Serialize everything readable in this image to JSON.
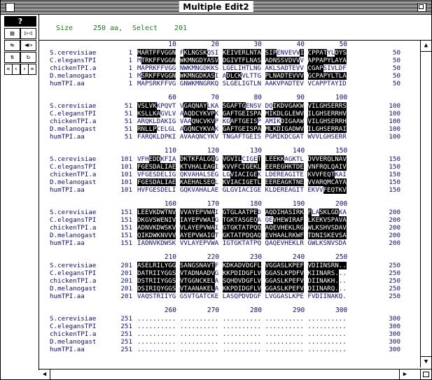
{
  "window": {
    "title": "Multiple Edit2"
  },
  "toolbar": {
    "help_label": "?",
    "buttons": [
      "layout-icon",
      "merge-icon",
      "slide-icon",
      "arrow-left-icon",
      "flip-icon",
      "refresh-icon",
      "first-icon",
      "prev-icon",
      "next-icon",
      "last-icon"
    ]
  },
  "status": {
    "size_label": "Size",
    "size_value": "250 aa,",
    "select_label": "Select",
    "select_value": "201"
  },
  "names": [
    "S.cerevisiae",
    "C.elegansTPI",
    "chickenTPI.a",
    "D.melanogast",
    "humTPI.aa"
  ],
  "blocks": [
    {
      "ticks": [
        "10",
        "20",
        "30",
        "40",
        "50"
      ],
      "start": "1",
      "end": "50",
      "seqs": [
        "MARTFFVGGN FKLNGSKQSI KEIVERLNTA SIPENVEVVI CPPATYLDYS",
        "MTRKFFVGGN WKMNGDYASV DGIVTFLNAS ADNSSVDVVV APPAPYLAYA",
        "MAPRKFFVGG NWKMNGDKKS LGELIHTLNG AKLSADTEVV CGAPSIVLDF",
        "MSRKFFVGGN WKMNGDKASI ADLCKVLTTG PLNADTEVVV GCPAPYLTLA",
        "MAPSRKFFVG GNWKMNGRKQ SLGELIGTLN AAKVPADTEV VCAPPTAYID"
      ],
      "hl": [
        [
          1,
          2,
          3,
          4,
          5,
          6,
          7,
          8,
          9,
          10,
          13,
          14,
          15,
          16,
          17,
          18,
          23,
          24,
          25,
          26,
          27,
          28,
          29,
          30,
          31,
          32,
          33,
          34,
          35,
          36,
          43,
          44,
          45,
          46,
          47,
          48,
          49,
          52,
          53,
          54,
          55,
          56,
          57,
          58,
          59
        ],
        [
          2,
          3,
          4,
          5,
          6,
          7,
          8,
          9,
          10,
          12,
          13,
          14,
          15,
          16,
          17,
          18,
          19,
          20,
          21,
          23,
          24,
          25,
          26,
          27,
          28,
          29,
          30,
          31,
          32,
          33,
          34,
          35,
          36,
          37,
          38,
          39,
          40,
          41,
          42,
          44,
          45,
          46,
          47,
          48,
          49,
          50,
          51,
          52,
          53,
          54,
          55,
          56,
          57,
          58,
          59
        ],
        [
          44,
          45,
          46,
          47,
          48
        ],
        [
          2,
          3,
          4,
          5,
          6,
          7,
          8,
          9,
          10,
          12,
          13,
          14,
          15,
          16,
          17,
          18,
          19,
          20,
          24,
          25,
          26,
          27,
          34,
          35,
          36,
          37,
          38,
          39,
          40,
          41,
          42,
          43,
          44,
          45,
          46,
          47,
          48,
          49,
          50,
          51,
          52,
          53,
          54,
          55,
          56,
          57
        ],
        []
      ]
    },
    {
      "ticks": [
        "60",
        "70",
        "80",
        "90",
        "100"
      ],
      "start": "51",
      "end": "100",
      "seqs": [
        "VSLVKKPQVT VGAQNAYLKA SGAFTGENSV DQIKDVGAKW VILGHSERRS",
        "KSLLKAGVLV AAQDCYKVPK GAFTGEISPA MIKDLGLEWV ILGHSERRHV",
        "ARQKLDAKIG VAAQNCVKVP KGAFTGEISP AMIKDIGAAW VILGHSERRH",
        "RNLLPCELGL AGQNCYKVAK GAFTGEISPA MLKDIGADWV ILGHSERRAI",
        "FARQKLDPKI AVAAQNCYKV TNGAFTGEIS PGMIKDCGAT WVVLGHSERR"
      ],
      "hl": [
        [
          1,
          2,
          3,
          4,
          5,
          13,
          14,
          15,
          16,
          17,
          18,
          22,
          23,
          24,
          25,
          26,
          27,
          28,
          36,
          37,
          38,
          39,
          40,
          41,
          42,
          43,
          44,
          45,
          46,
          47,
          48,
          49,
          50,
          51,
          52,
          53,
          54,
          55,
          56,
          57
        ],
        [
          1,
          2,
          3,
          4,
          5,
          6,
          13,
          14,
          15,
          16,
          17,
          18,
          19,
          20,
          22,
          23,
          24,
          25,
          26,
          27,
          28,
          29,
          30,
          31,
          32,
          33,
          34,
          35,
          36,
          37,
          38,
          39,
          40,
          41,
          42,
          43,
          44,
          45,
          46,
          47,
          48,
          49,
          50,
          51,
          52,
          53,
          54,
          55,
          56,
          57,
          58,
          59
        ],
        [
          15,
          16,
          17,
          18,
          19,
          20,
          25,
          26,
          27,
          28,
          29,
          30,
          31,
          38,
          39,
          40,
          41,
          42,
          43,
          44,
          45,
          46,
          47,
          48,
          49,
          50,
          51,
          52,
          53,
          54,
          55,
          56,
          57,
          58,
          59
        ],
        [
          1,
          2,
          3,
          4,
          5,
          13,
          14,
          15,
          16,
          17,
          18,
          19,
          20,
          22,
          23,
          24,
          25,
          26,
          27,
          28,
          29,
          30,
          31,
          32,
          33,
          34,
          35,
          36,
          37,
          38,
          39,
          40,
          41,
          42,
          43,
          44,
          45,
          46,
          47,
          48,
          49,
          50,
          51,
          52,
          53,
          54,
          55,
          56,
          57,
          58,
          59
        ],
        []
      ]
    },
    {
      "ticks": [
        "110",
        "120",
        "130",
        "140",
        "150"
      ],
      "start": "101",
      "end": "150",
      "seqs": [
        "VFHEDDKFIA DKTKFALGQG VGVILCIGET LEEKKAGKTL DVVERQLNAV",
        "FGESDALIAE KTVHALEAGI KVVFCIGEKL EEREGHKTDE VNFRQLQAIV",
        "VFGESDELIG QKVAHALSEG LGVIACIGEK LDEREAGITE KVVFEQTKAI",
        "FGESDALIAE KAEHALSEGL KVIACIGETL EEREAGKTNE VVARQMCAYA",
        "HVFGESDELI GQKVAHALAE GLGVIACIGE KLDEREAGIT EKVVFEQTKV"
      ],
      "hl": [
        [
          4,
          5,
          6,
          12,
          13,
          14,
          15,
          16,
          17,
          18,
          19,
          20,
          22,
          23,
          24,
          25,
          26,
          27,
          32,
          33,
          34,
          35,
          36,
          37,
          38,
          44,
          45,
          46,
          47,
          48,
          49,
          50,
          51,
          52,
          53,
          54,
          55,
          56,
          57,
          58,
          59
        ],
        [
          1,
          2,
          3,
          4,
          5,
          6,
          7,
          8,
          9,
          10,
          12,
          13,
          14,
          15,
          16,
          17,
          18,
          19,
          20,
          22,
          23,
          24,
          25,
          26,
          27,
          28,
          29,
          30,
          31,
          32,
          33,
          34,
          35,
          36,
          37,
          38,
          39,
          40,
          41,
          42,
          43,
          44,
          45,
          46,
          47,
          48,
          49,
          50,
          51,
          52,
          53,
          54,
          55,
          56,
          57,
          58,
          59
        ],
        [
          25,
          26,
          27,
          28,
          29,
          30,
          31,
          44,
          45,
          46,
          47,
          48,
          49,
          50,
          51
        ],
        [
          1,
          2,
          3,
          4,
          5,
          6,
          7,
          8,
          9,
          10,
          12,
          13,
          14,
          15,
          16,
          17,
          18,
          19,
          20,
          22,
          23,
          24,
          25,
          26,
          27,
          28,
          29,
          30,
          31,
          32,
          33,
          34,
          35,
          36,
          37,
          38,
          39,
          40,
          41,
          42,
          43,
          44,
          45,
          46,
          47,
          48,
          49,
          50,
          51,
          52,
          53,
          54,
          55,
          56,
          57,
          58,
          59
        ],
        [
          49,
          50,
          51,
          52,
          53,
          54,
          55,
          56,
          57,
          58,
          59
        ]
      ]
    },
    {
      "ticks": [
        "160",
        "170",
        "180",
        "190",
        "200"
      ],
      "start": "151",
      "end": "200",
      "seqs": [
        "LEEVKDWTNV VVAYEPVWAI GTGLAATPED AQDIHASIRK FLASKLGDKA",
        "DKGVSWENIV IAYEPVWAIG TGKTASGEQA QEVHEWIRAF LKEKVSPAVA",
        "ADNVKDWSKV VLAYEPVWAI GTGKTATPQQ AQEVHEKLRG WLKSHVSDAV",
        "QIKDWKNVVV AYEPVWAIGT GKTATPDQAQ EVHAALRKWF TDNISKEVSA",
        "IADNVKDWSK VVLAYEPVWA IGTGKTATPQ QAQEVHEKLR GWLKSNVSDA"
      ],
      "hl": [
        [
          1,
          2,
          3,
          4,
          5,
          6,
          7,
          8,
          9,
          10,
          12,
          13,
          14,
          15,
          16,
          17,
          18,
          19,
          20,
          22,
          23,
          24,
          25,
          26,
          27,
          28,
          29,
          30,
          31,
          34,
          35,
          36,
          37,
          38,
          39,
          40,
          41,
          42,
          43,
          44,
          45,
          48,
          49,
          50,
          51,
          52
        ],
        [
          1,
          2,
          3,
          4,
          5,
          6,
          7,
          8,
          9,
          10,
          12,
          13,
          14,
          15,
          16,
          17,
          18,
          19,
          20,
          22,
          23,
          24,
          25,
          26,
          27,
          28,
          29,
          30,
          31,
          36,
          37,
          38,
          39,
          40,
          41,
          42,
          43,
          44,
          45,
          46,
          47,
          48,
          49,
          50,
          51,
          52,
          53,
          54,
          55,
          56,
          57,
          58,
          59
        ],
        [
          1,
          2,
          3,
          4,
          5,
          6,
          7,
          8,
          9,
          10,
          12,
          13,
          14,
          15,
          16,
          17,
          18,
          19,
          20,
          22,
          23,
          24,
          25,
          26,
          27,
          28,
          29,
          30,
          31,
          32,
          33,
          34,
          35,
          36,
          37,
          38,
          39,
          40,
          41,
          42,
          43,
          44,
          45,
          46,
          47,
          48,
          49,
          50,
          51,
          52,
          53,
          54,
          55,
          56,
          57,
          58,
          59
        ],
        [
          1,
          2,
          3,
          4,
          5,
          6,
          7,
          8,
          9,
          10,
          12,
          13,
          14,
          15,
          16,
          17,
          18,
          19,
          20,
          22,
          23,
          24,
          25,
          26,
          27,
          28,
          29,
          30,
          31,
          32,
          33,
          34,
          35,
          36,
          37,
          38,
          39,
          40,
          41,
          42,
          43,
          44,
          45,
          46,
          47,
          48,
          49,
          50,
          51,
          52,
          53,
          54,
          55,
          56,
          57,
          58,
          59
        ],
        []
      ]
    },
    {
      "ticks": [
        "210",
        "220",
        "230",
        "240",
        "250"
      ],
      "start": "201",
      "end": "250",
      "seqs": [
        "ASELRILYGG SANGSNAVTF KDKADVDGFL VGGASLKPEF VDIINSRN..",
        "DATRIIYGGS VTADNAADVG KKPDIDGFLV GGASLKPDFV KIINARS...",
        "DSTRIIYGGS VTGGNCKELA SQHDVDGFLV GGASLKPEFV DIINAKH...",
        "DSIRIQYGGS VTAANAKELA KKPDIDGFLV GGASLKPEFV DIINARQ...",
        "VAQSTRIIYG GSVTGATCKE LASQPDVDGF LVGGASLKPE FVDIINAKQ."
      ],
      "hl": [
        [
          1,
          2,
          3,
          4,
          5,
          6,
          7,
          8,
          9,
          10,
          12,
          13,
          14,
          15,
          16,
          17,
          18,
          19,
          20,
          22,
          23,
          24,
          25,
          26,
          27,
          28,
          29,
          30,
          31,
          32,
          33,
          34,
          35,
          36,
          37,
          38,
          39,
          40,
          41,
          42,
          43,
          44,
          45,
          46,
          47,
          48,
          49,
          50,
          51,
          52,
          53,
          54
        ],
        [
          1,
          2,
          3,
          4,
          5,
          6,
          7,
          8,
          9,
          10,
          12,
          13,
          14,
          15,
          16,
          17,
          18,
          19,
          20,
          22,
          23,
          24,
          25,
          26,
          27,
          28,
          29,
          30,
          31,
          32,
          33,
          34,
          35,
          36,
          37,
          38,
          39,
          40,
          41,
          42,
          43,
          44,
          45,
          46,
          47,
          48,
          49,
          50,
          51,
          52
        ],
        [
          1,
          2,
          3,
          4,
          5,
          6,
          7,
          8,
          9,
          10,
          12,
          13,
          14,
          15,
          16,
          17,
          18,
          19,
          20,
          22,
          23,
          24,
          25,
          26,
          27,
          28,
          29,
          30,
          31,
          32,
          33,
          34,
          35,
          36,
          37,
          38,
          39,
          40,
          41,
          42,
          43,
          44,
          45,
          46,
          47,
          48,
          49,
          50,
          51,
          52
        ],
        [
          1,
          2,
          3,
          4,
          5,
          6,
          7,
          8,
          9,
          10,
          12,
          13,
          14,
          15,
          16,
          17,
          18,
          19,
          20,
          22,
          23,
          24,
          25,
          26,
          27,
          28,
          29,
          30,
          31,
          32,
          33,
          34,
          35,
          36,
          37,
          38,
          39,
          40,
          41,
          42,
          43,
          44,
          45,
          46,
          47,
          48,
          49,
          50,
          51,
          52
        ],
        []
      ]
    },
    {
      "ticks": [
        "260",
        "270",
        "280",
        "290",
        "300"
      ],
      "start": "251",
      "end": "300",
      "seqs": [
        ".......... .......... .......... .......... ..........",
        ".......... .......... .......... .......... ..........",
        ".......... .......... .......... .......... ..........",
        ".......... .......... .......... .......... ..........",
        ".......... .......... .......... .......... .........."
      ],
      "hl": [
        [],
        [],
        [],
        [],
        []
      ]
    }
  ]
}
